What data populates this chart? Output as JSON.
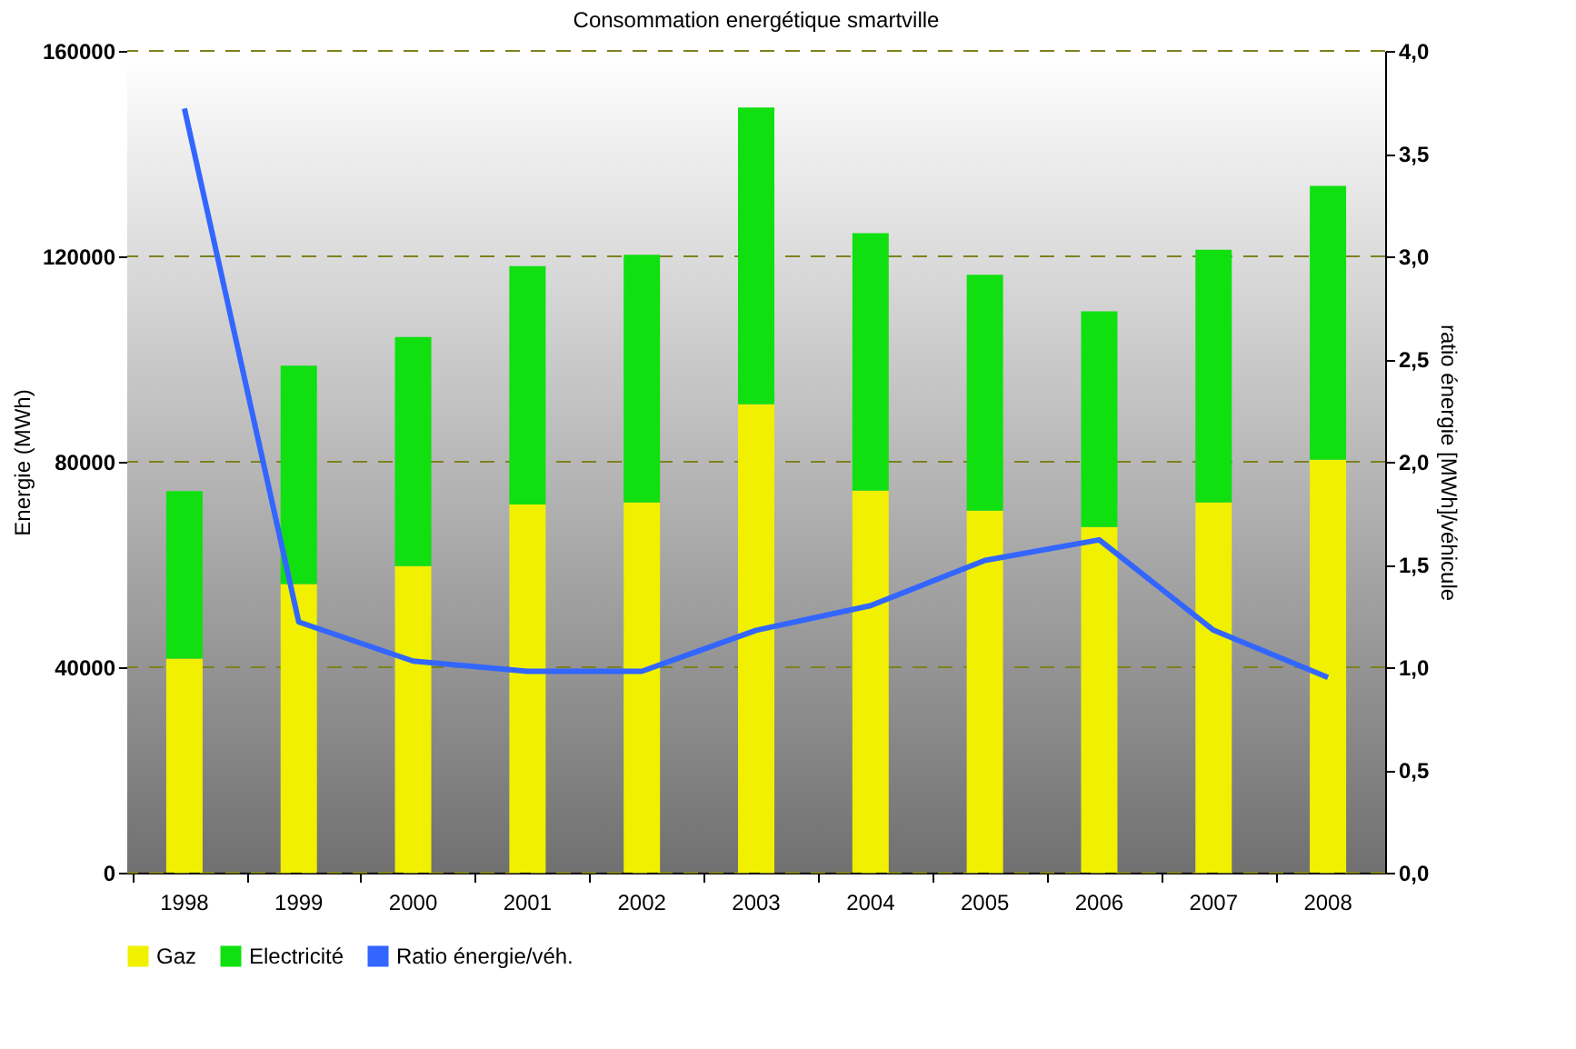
{
  "chart_data": {
    "type": "bar",
    "title": "Consommation energétique smartville",
    "ylabel": "Energie (MWh)",
    "y2label": "ratio énergie [MWh]/véhicule",
    "categories": [
      "1998",
      "1999",
      "2000",
      "2001",
      "2002",
      "2003",
      "2004",
      "2005",
      "2006",
      "2007",
      "2008"
    ],
    "stacked": true,
    "series": [
      {
        "name": "Gaz",
        "color": "#f0f000",
        "values": [
          41700,
          56200,
          59700,
          71700,
          72100,
          91200,
          74400,
          70500,
          67300,
          72100,
          80400
        ]
      },
      {
        "name": "Electricité",
        "color": "#10e010",
        "values": [
          32600,
          42500,
          44600,
          46400,
          48200,
          57800,
          50100,
          45900,
          42000,
          49200,
          53300
        ]
      },
      {
        "name": "Ratio énergie/véh.",
        "type": "line",
        "axis": "y2",
        "color": "#3366ff",
        "values": [
          3.72,
          1.22,
          1.03,
          0.98,
          0.98,
          1.18,
          1.3,
          1.52,
          1.62,
          1.18,
          0.95
        ]
      }
    ],
    "ylim": [
      0,
      160000
    ],
    "yticks": [
      0,
      40000,
      80000,
      120000,
      160000
    ],
    "y2lim": [
      0,
      4
    ],
    "y2ticks": [
      {
        "value": 0,
        "label": "0,0"
      },
      {
        "value": 0.5,
        "label": "0,5"
      },
      {
        "value": 1,
        "label": "1,0"
      },
      {
        "value": 1.5,
        "label": "1,5"
      },
      {
        "value": 2,
        "label": "2,0"
      },
      {
        "value": 2.5,
        "label": "2,5"
      },
      {
        "value": 3,
        "label": "3,0"
      },
      {
        "value": 3.5,
        "label": "3,5"
      },
      {
        "value": 4,
        "label": "4,0"
      }
    ],
    "grid": "y",
    "legend": "bottom"
  }
}
